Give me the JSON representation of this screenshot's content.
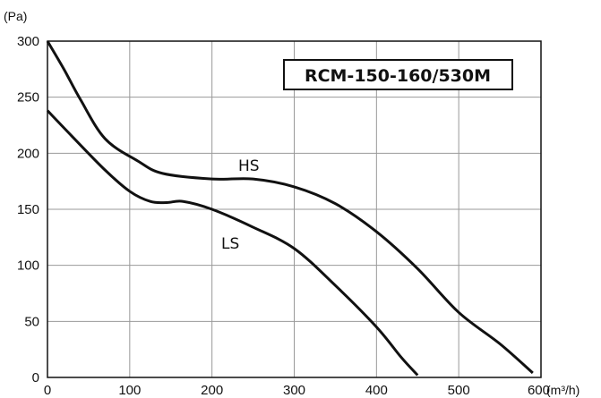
{
  "chart_data": {
    "type": "line",
    "title": "RCM-150-160/530M",
    "ylabel": "(Pa)",
    "xlabel": "(m³/h)",
    "xlim": [
      0,
      600
    ],
    "ylim": [
      0,
      300
    ],
    "grid": true,
    "x_ticks": [
      "0",
      "100",
      "200",
      "300",
      "400",
      "500",
      "600"
    ],
    "y_ticks": [
      "0",
      "50",
      "100",
      "150",
      "200",
      "250",
      "300"
    ],
    "series": [
      {
        "name": "HS",
        "x": [
          0,
          20,
          40,
          70,
          110,
          140,
          200,
          250,
          300,
          350,
          400,
          450,
          500,
          550,
          590
        ],
        "values": [
          300,
          275,
          248,
          213,
          193,
          182,
          177,
          177,
          170,
          155,
          130,
          97,
          58,
          30,
          4
        ]
      },
      {
        "name": "LS",
        "x": [
          0,
          30,
          70,
          100,
          125,
          145,
          165,
          200,
          250,
          300,
          350,
          400,
          430,
          450
        ],
        "values": [
          238,
          215,
          185,
          166,
          157,
          156,
          157,
          150,
          134,
          115,
          82,
          45,
          18,
          2
        ]
      }
    ]
  }
}
